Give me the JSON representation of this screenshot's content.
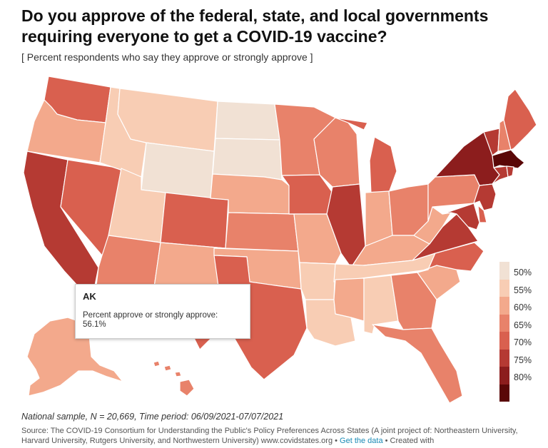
{
  "title": "Do you approve of the federal, state, and local governments\nrequiring everyone to get a COVID-19 vaccine?",
  "subtitle": "[ Percent respondents who say they approve or strongly approve ]",
  "legend": {
    "items": [
      {
        "label": "50%",
        "color": "#f1e1d4"
      },
      {
        "label": "55%",
        "color": "#f8cdb4"
      },
      {
        "label": "60%",
        "color": "#f3a98c"
      },
      {
        "label": "65%",
        "color": "#e8826a"
      },
      {
        "label": "70%",
        "color": "#d9604f"
      },
      {
        "label": "75%",
        "color": "#b53a33"
      },
      {
        "label": "80%",
        "color": "#8c1d1d"
      },
      {
        "label": "",
        "color": "#5a0707"
      }
    ]
  },
  "tooltip": {
    "abbr": "AK",
    "label": "Percent approve or strongly approve:",
    "value": "56.1%"
  },
  "notes": "National sample, N = 20,669, Time period: 06/09/2021-07/07/2021",
  "source": {
    "text": "Source: The COVID-19 Consortium for Understanding the Public's Policy Preferences Across States (A joint project of: Northeastern University, Harvard University, Rutgers University, and Northwestern University) www.covidstates.org • ",
    "link": "Get the data",
    "suffix": " • Created with"
  },
  "map_data": {
    "states": [
      {
        "abbr": "WA",
        "bin": 4
      },
      {
        "abbr": "OR",
        "bin": 2
      },
      {
        "abbr": "CA",
        "bin": 5
      },
      {
        "abbr": "NV",
        "bin": 4
      },
      {
        "abbr": "ID",
        "bin": 1
      },
      {
        "abbr": "MT",
        "bin": 1
      },
      {
        "abbr": "WY",
        "bin": 0
      },
      {
        "abbr": "UT",
        "bin": 1
      },
      {
        "abbr": "AZ",
        "bin": 3
      },
      {
        "abbr": "CO",
        "bin": 4
      },
      {
        "abbr": "NM",
        "bin": 2
      },
      {
        "abbr": "ND",
        "bin": 0
      },
      {
        "abbr": "SD",
        "bin": 0
      },
      {
        "abbr": "NE",
        "bin": 2
      },
      {
        "abbr": "KS",
        "bin": 3
      },
      {
        "abbr": "OK",
        "bin": 2
      },
      {
        "abbr": "TX",
        "bin": 4
      },
      {
        "abbr": "MN",
        "bin": 3
      },
      {
        "abbr": "IA",
        "bin": 4
      },
      {
        "abbr": "MO",
        "bin": 2
      },
      {
        "abbr": "AR",
        "bin": 1
      },
      {
        "abbr": "LA",
        "bin": 1
      },
      {
        "abbr": "WI",
        "bin": 3
      },
      {
        "abbr": "IL",
        "bin": 5
      },
      {
        "abbr": "MI",
        "bin": 4
      },
      {
        "abbr": "IN",
        "bin": 2
      },
      {
        "abbr": "OH",
        "bin": 3
      },
      {
        "abbr": "KY",
        "bin": 2
      },
      {
        "abbr": "TN",
        "bin": 1
      },
      {
        "abbr": "MS",
        "bin": 2
      },
      {
        "abbr": "AL",
        "bin": 1
      },
      {
        "abbr": "GA",
        "bin": 3
      },
      {
        "abbr": "FL",
        "bin": 3
      },
      {
        "abbr": "SC",
        "bin": 2
      },
      {
        "abbr": "NC",
        "bin": 4
      },
      {
        "abbr": "VA",
        "bin": 5
      },
      {
        "abbr": "WV",
        "bin": 2
      },
      {
        "abbr": "PA",
        "bin": 3
      },
      {
        "abbr": "NY",
        "bin": 6
      },
      {
        "abbr": "VT",
        "bin": 5
      },
      {
        "abbr": "NH",
        "bin": 3
      },
      {
        "abbr": "ME",
        "bin": 4
      },
      {
        "abbr": "MA",
        "bin": 7
      },
      {
        "abbr": "CT",
        "bin": 5
      },
      {
        "abbr": "RI",
        "bin": 5
      },
      {
        "abbr": "NJ",
        "bin": 5
      },
      {
        "abbr": "DE",
        "bin": 4
      },
      {
        "abbr": "MD",
        "bin": 5
      },
      {
        "abbr": "AK",
        "bin": 2
      },
      {
        "abbr": "HI",
        "bin": 3
      }
    ]
  }
}
